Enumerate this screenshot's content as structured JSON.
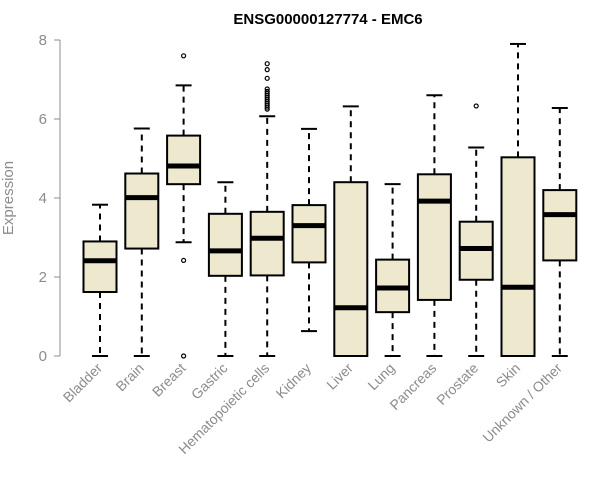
{
  "chart_data": {
    "type": "box",
    "title": "ENSG00000127774 - EMC6",
    "xlabel": "",
    "ylabel": "Expression",
    "ylim": [
      0,
      8
    ],
    "yticks": [
      0,
      2,
      4,
      6,
      8
    ],
    "grid": false,
    "box_fill": "#EDE8CE",
    "box_stroke": "#000000",
    "axis_color": "#8c8c8c",
    "categories": [
      "Bladder",
      "Brain",
      "Breast",
      "Gastric",
      "Hematopoietic cells",
      "Kidney",
      "Liver",
      "Lung",
      "Pancreas",
      "Prostate",
      "Skin",
      "Unknown / Other"
    ],
    "boxes": [
      {
        "category": "Bladder",
        "whisker_low": 0.0,
        "q1": 1.62,
        "median": 2.41,
        "q3": 2.9,
        "whisker_high": 3.83,
        "outliers": []
      },
      {
        "category": "Brain",
        "whisker_low": 0.0,
        "q1": 2.72,
        "median": 4.01,
        "q3": 4.62,
        "whisker_high": 5.76,
        "outliers": []
      },
      {
        "category": "Breast",
        "whisker_low": 2.88,
        "q1": 4.35,
        "median": 4.81,
        "q3": 5.58,
        "whisker_high": 6.85,
        "outliers": [
          7.6,
          2.42,
          0.0
        ]
      },
      {
        "category": "Gastric",
        "whisker_low": 0.0,
        "q1": 2.03,
        "median": 2.66,
        "q3": 3.6,
        "whisker_high": 4.4,
        "outliers": []
      },
      {
        "category": "Hematopoietic cells",
        "whisker_low": 0.0,
        "q1": 2.04,
        "median": 2.98,
        "q3": 3.65,
        "whisker_high": 6.07,
        "outliers": [
          7.4,
          7.25,
          7.03,
          6.76,
          6.7,
          6.65,
          6.6,
          6.55,
          6.5,
          6.45,
          6.4,
          6.35,
          6.3,
          6.25
        ]
      },
      {
        "category": "Kidney",
        "whisker_low": 0.63,
        "q1": 2.37,
        "median": 3.3,
        "q3": 3.82,
        "whisker_high": 5.75,
        "outliers": []
      },
      {
        "category": "Liver",
        "whisker_low": 0.0,
        "q1": 0.0,
        "median": 1.22,
        "q3": 4.4,
        "whisker_high": 6.32,
        "outliers": []
      },
      {
        "category": "Lung",
        "whisker_low": 0.0,
        "q1": 1.11,
        "median": 1.72,
        "q3": 2.44,
        "whisker_high": 4.35,
        "outliers": []
      },
      {
        "category": "Pancreas",
        "whisker_low": 0.0,
        "q1": 1.42,
        "median": 3.92,
        "q3": 4.6,
        "whisker_high": 6.6,
        "outliers": []
      },
      {
        "category": "Prostate",
        "whisker_low": 0.0,
        "q1": 1.93,
        "median": 2.72,
        "q3": 3.4,
        "whisker_high": 5.28,
        "outliers": [
          6.33
        ]
      },
      {
        "category": "Skin",
        "whisker_low": 0.0,
        "q1": 0.0,
        "median": 1.74,
        "q3": 5.03,
        "whisker_high": 7.9,
        "outliers": []
      },
      {
        "category": "Unknown / Other",
        "whisker_low": 0.0,
        "q1": 2.42,
        "median": 3.58,
        "q3": 4.2,
        "whisker_high": 6.28,
        "outliers": []
      }
    ]
  }
}
